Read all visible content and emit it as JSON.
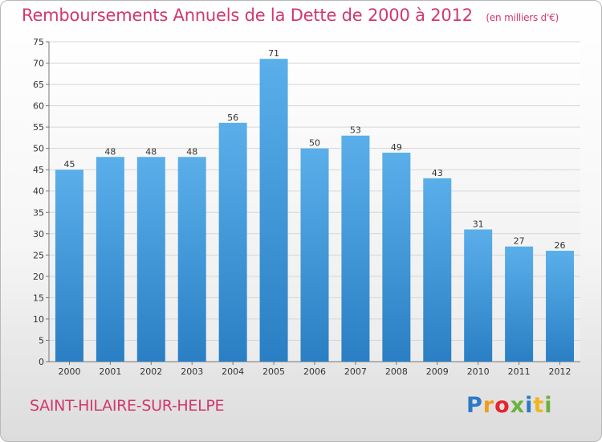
{
  "chart_data": {
    "type": "bar",
    "title": "Remboursements Annuels de la Dette de 2000 à 2012",
    "subtitle": "(en milliers d'€)",
    "categories": [
      "2000",
      "2001",
      "2002",
      "2003",
      "2004",
      "2005",
      "2006",
      "2007",
      "2008",
      "2009",
      "2010",
      "2011",
      "2012"
    ],
    "values": [
      45,
      48,
      48,
      48,
      56,
      71,
      50,
      53,
      49,
      43,
      31,
      27,
      26
    ],
    "ylim": [
      0,
      75
    ],
    "yticks": [
      0,
      5,
      10,
      15,
      20,
      25,
      30,
      35,
      40,
      45,
      50,
      55,
      60,
      65,
      70,
      75
    ],
    "grid": true,
    "bar_color": "#3f97da"
  },
  "commune": "SAINT-HILAIRE-SUR-HELPE",
  "logo_text": "Proxiti"
}
